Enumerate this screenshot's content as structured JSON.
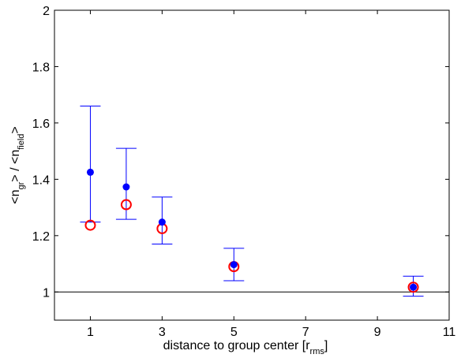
{
  "chart_data": {
    "type": "scatter",
    "title": "",
    "xlabel": {
      "main": "distance to group center [r",
      "sub": "rms",
      "end": "]"
    },
    "ylabel": {
      "p1": "<n",
      "s1": "gr",
      "p2": "> / <n",
      "s2": "field",
      "p3": ">"
    },
    "xlim": [
      0,
      11
    ],
    "ylim": [
      0.9,
      2.0
    ],
    "x_ticks": [
      1,
      3,
      5,
      7,
      9,
      11
    ],
    "y_ticks": [
      1,
      1.2,
      1.4,
      1.6,
      1.8,
      2
    ],
    "y_tick_labels": [
      "1",
      "1.2",
      "1.4",
      "1.6",
      "1.8",
      "2"
    ],
    "grid": false,
    "reference_line": {
      "y": 1.0,
      "color": "#000000"
    },
    "series": [
      {
        "marker": "filled-circle",
        "color": "#0000ff",
        "x": [
          1,
          2,
          3,
          5,
          10
        ],
        "y": [
          1.425,
          1.373,
          1.248,
          1.097,
          1.017
        ],
        "error_low": [
          1.248,
          1.258,
          1.17,
          1.04,
          0.985
        ],
        "error_high": [
          1.66,
          1.51,
          1.337,
          1.155,
          1.056
        ]
      },
      {
        "marker": "open-circle",
        "color": "#ff0000",
        "x": [
          1,
          2,
          3,
          5,
          10
        ],
        "y": [
          1.237,
          1.31,
          1.225,
          1.09,
          1.017
        ]
      }
    ]
  }
}
